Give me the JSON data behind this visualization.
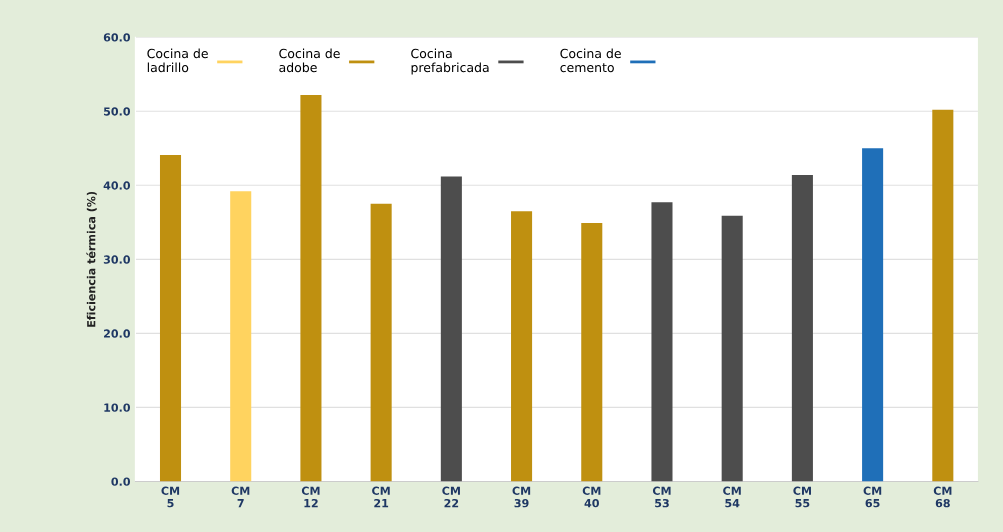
{
  "chart_data": {
    "type": "bar",
    "ylabel": "Eficiencia térmica (%)",
    "categories": [
      "CM\n5",
      "CM\n7",
      "CM\n12",
      "CM\n21",
      "CM\n22",
      "CM\n39",
      "CM\n40",
      "CM\n53",
      "CM\n54",
      "CM\n55",
      "CM\n65",
      "CM\n68"
    ],
    "series": [
      {
        "name": "Cocina de\nladrillo",
        "color": "#ffd35f",
        "values": [
          null,
          39.2,
          null,
          null,
          null,
          null,
          null,
          null,
          null,
          null,
          null,
          null
        ]
      },
      {
        "name": "Cocina de\nadobe",
        "color": "#bf9010",
        "values": [
          44.1,
          null,
          52.2,
          37.5,
          null,
          36.5,
          34.9,
          null,
          null,
          null,
          null,
          50.2
        ]
      },
      {
        "name": "Cocina\nprefabricada",
        "color": "#4d4d4d",
        "values": [
          null,
          null,
          null,
          null,
          41.2,
          null,
          null,
          37.7,
          35.9,
          41.4,
          null,
          null
        ]
      },
      {
        "name": "Cocina de\ncemento",
        "color": "#1f6fb8",
        "values": [
          null,
          null,
          null,
          null,
          null,
          null,
          null,
          null,
          null,
          null,
          45.0,
          null
        ]
      }
    ],
    "ylim": [
      0,
      60
    ],
    "yticks": [
      {
        "value": 0,
        "label": "0.0"
      },
      {
        "value": 10,
        "label": "10.0"
      },
      {
        "value": 20,
        "label": "20.0"
      },
      {
        "value": 30,
        "label": "30.0"
      },
      {
        "value": 40,
        "label": "40.0"
      },
      {
        "value": 50,
        "label": "50.0"
      },
      {
        "value": 60,
        "label": "60.0"
      }
    ],
    "grid": "y",
    "legend": "top left"
  }
}
